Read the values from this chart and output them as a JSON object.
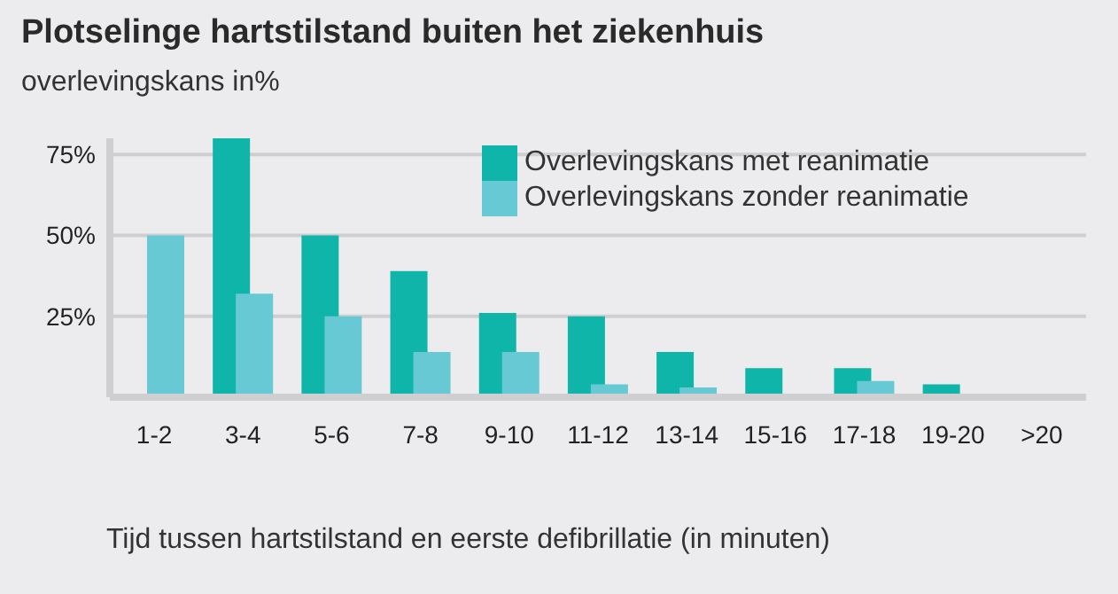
{
  "chart_data": {
    "type": "bar",
    "title": "Plotselinge hartstilstand buiten het ziekenhuis",
    "ylabel": "overlevingskans in%",
    "xlabel": "Tijd tussen hartstilstand en eerste defibrillatie (in minuten)",
    "categories": [
      "1-2",
      "3-4",
      "5-6",
      "7-8",
      "9-10",
      "11-12",
      "13-14",
      "15-16",
      "17-18",
      "19-20",
      ">20"
    ],
    "series": [
      {
        "name": "Overlevingskans met reanimatie",
        "color": "#10b5a9",
        "values": [
          null,
          80,
          50,
          39,
          26,
          25,
          14,
          9,
          9,
          4,
          null
        ]
      },
      {
        "name": "Overlevingskans zonder reanimatie",
        "color": "#66c9d3",
        "values": [
          50,
          32,
          25,
          14,
          14,
          4,
          3,
          null,
          5,
          null,
          null
        ]
      }
    ],
    "ylim": [
      0,
      80
    ],
    "yticks": [
      {
        "value": 25,
        "label": "25%"
      },
      {
        "value": 50,
        "label": "50%"
      },
      {
        "value": 75,
        "label": "75%"
      }
    ],
    "grid": "y",
    "legend": "top right"
  }
}
